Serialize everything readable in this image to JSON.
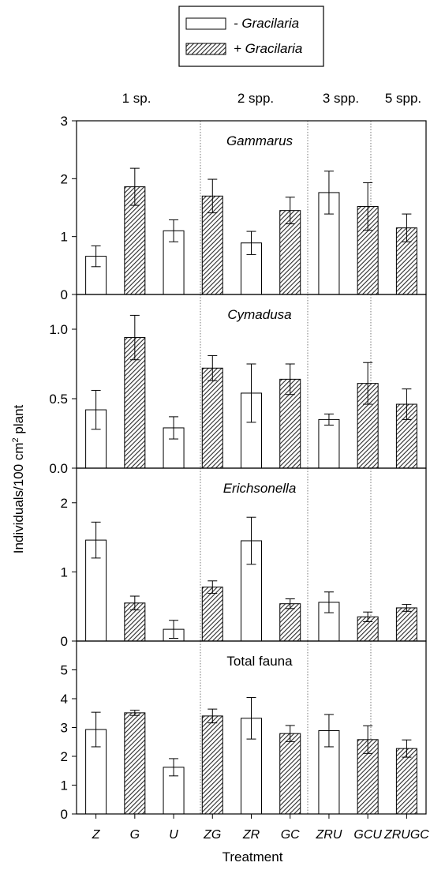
{
  "chart_data": {
    "type": "bar",
    "legend": {
      "placement": "top-center",
      "items": [
        {
          "label": "- Gracilaria",
          "fill": "open"
        },
        {
          "label": "+ Gracilaria",
          "fill": "hatched"
        }
      ]
    },
    "groups": [
      {
        "label": "1 sp.",
        "categories": [
          "Z",
          "G",
          "U"
        ]
      },
      {
        "label": "2 spp.",
        "categories": [
          "ZG",
          "ZR",
          "GC"
        ]
      },
      {
        "label": "3 spp.",
        "categories": [
          "ZRU",
          "GCU"
        ]
      },
      {
        "label": "5 spp.",
        "categories": [
          "ZRUGC"
        ]
      }
    ],
    "categories": [
      "Z",
      "G",
      "U",
      "ZG",
      "ZR",
      "GC",
      "ZRU",
      "GCU",
      "ZRUGC"
    ],
    "gracilaria": [
      "-",
      "+",
      "-",
      "+",
      "-",
      "+",
      "-",
      "+",
      "+"
    ],
    "xlabel": "Treatment",
    "ylabel_parts": [
      "Individuals/100 cm",
      "2",
      " plant"
    ],
    "panels": [
      {
        "title": "Gammarus",
        "title_italic": true,
        "ylim": [
          0,
          3
        ],
        "yticks": [
          {
            "v": 0,
            "label": "0"
          },
          {
            "v": 1,
            "label": "1"
          },
          {
            "v": 2,
            "label": "2"
          },
          {
            "v": 3,
            "label": "3"
          }
        ],
        "values": [
          0.66,
          1.86,
          1.1,
          1.7,
          0.89,
          1.45,
          1.76,
          1.52,
          1.15
        ],
        "errors": [
          0.18,
          0.32,
          0.19,
          0.29,
          0.2,
          0.23,
          0.37,
          0.41,
          0.24
        ]
      },
      {
        "title": "Cymadusa",
        "title_italic": true,
        "ylim": [
          0,
          1.25
        ],
        "yticks": [
          {
            "v": 0,
            "label": "0.0"
          },
          {
            "v": 0.5,
            "label": "0.5"
          },
          {
            "v": 1.0,
            "label": "1.0"
          }
        ],
        "values": [
          0.42,
          0.94,
          0.29,
          0.72,
          0.54,
          0.64,
          0.35,
          0.61,
          0.46
        ],
        "errors": [
          0.14,
          0.16,
          0.08,
          0.09,
          0.21,
          0.11,
          0.04,
          0.15,
          0.11
        ]
      },
      {
        "title": "Erichsonella",
        "title_italic": true,
        "ylim": [
          0,
          2.5
        ],
        "yticks": [
          {
            "v": 0,
            "label": "0"
          },
          {
            "v": 1,
            "label": "1"
          },
          {
            "v": 2,
            "label": "2"
          }
        ],
        "values": [
          1.46,
          0.55,
          0.17,
          0.78,
          1.45,
          0.54,
          0.56,
          0.35,
          0.48
        ],
        "errors": [
          0.26,
          0.1,
          0.13,
          0.09,
          0.34,
          0.07,
          0.15,
          0.07,
          0.05
        ]
      },
      {
        "title": "Total fauna",
        "title_italic": false,
        "ylim": [
          0,
          6
        ],
        "yticks": [
          {
            "v": 0,
            "label": "0"
          },
          {
            "v": 1,
            "label": "1"
          },
          {
            "v": 2,
            "label": "2"
          },
          {
            "v": 3,
            "label": "3"
          },
          {
            "v": 4,
            "label": "4"
          },
          {
            "v": 5,
            "label": "5"
          }
        ],
        "values": [
          2.93,
          3.51,
          1.62,
          3.4,
          3.32,
          2.79,
          2.89,
          2.58,
          2.27
        ],
        "errors": [
          0.6,
          0.09,
          0.3,
          0.24,
          0.72,
          0.28,
          0.56,
          0.48,
          0.3
        ]
      }
    ]
  }
}
